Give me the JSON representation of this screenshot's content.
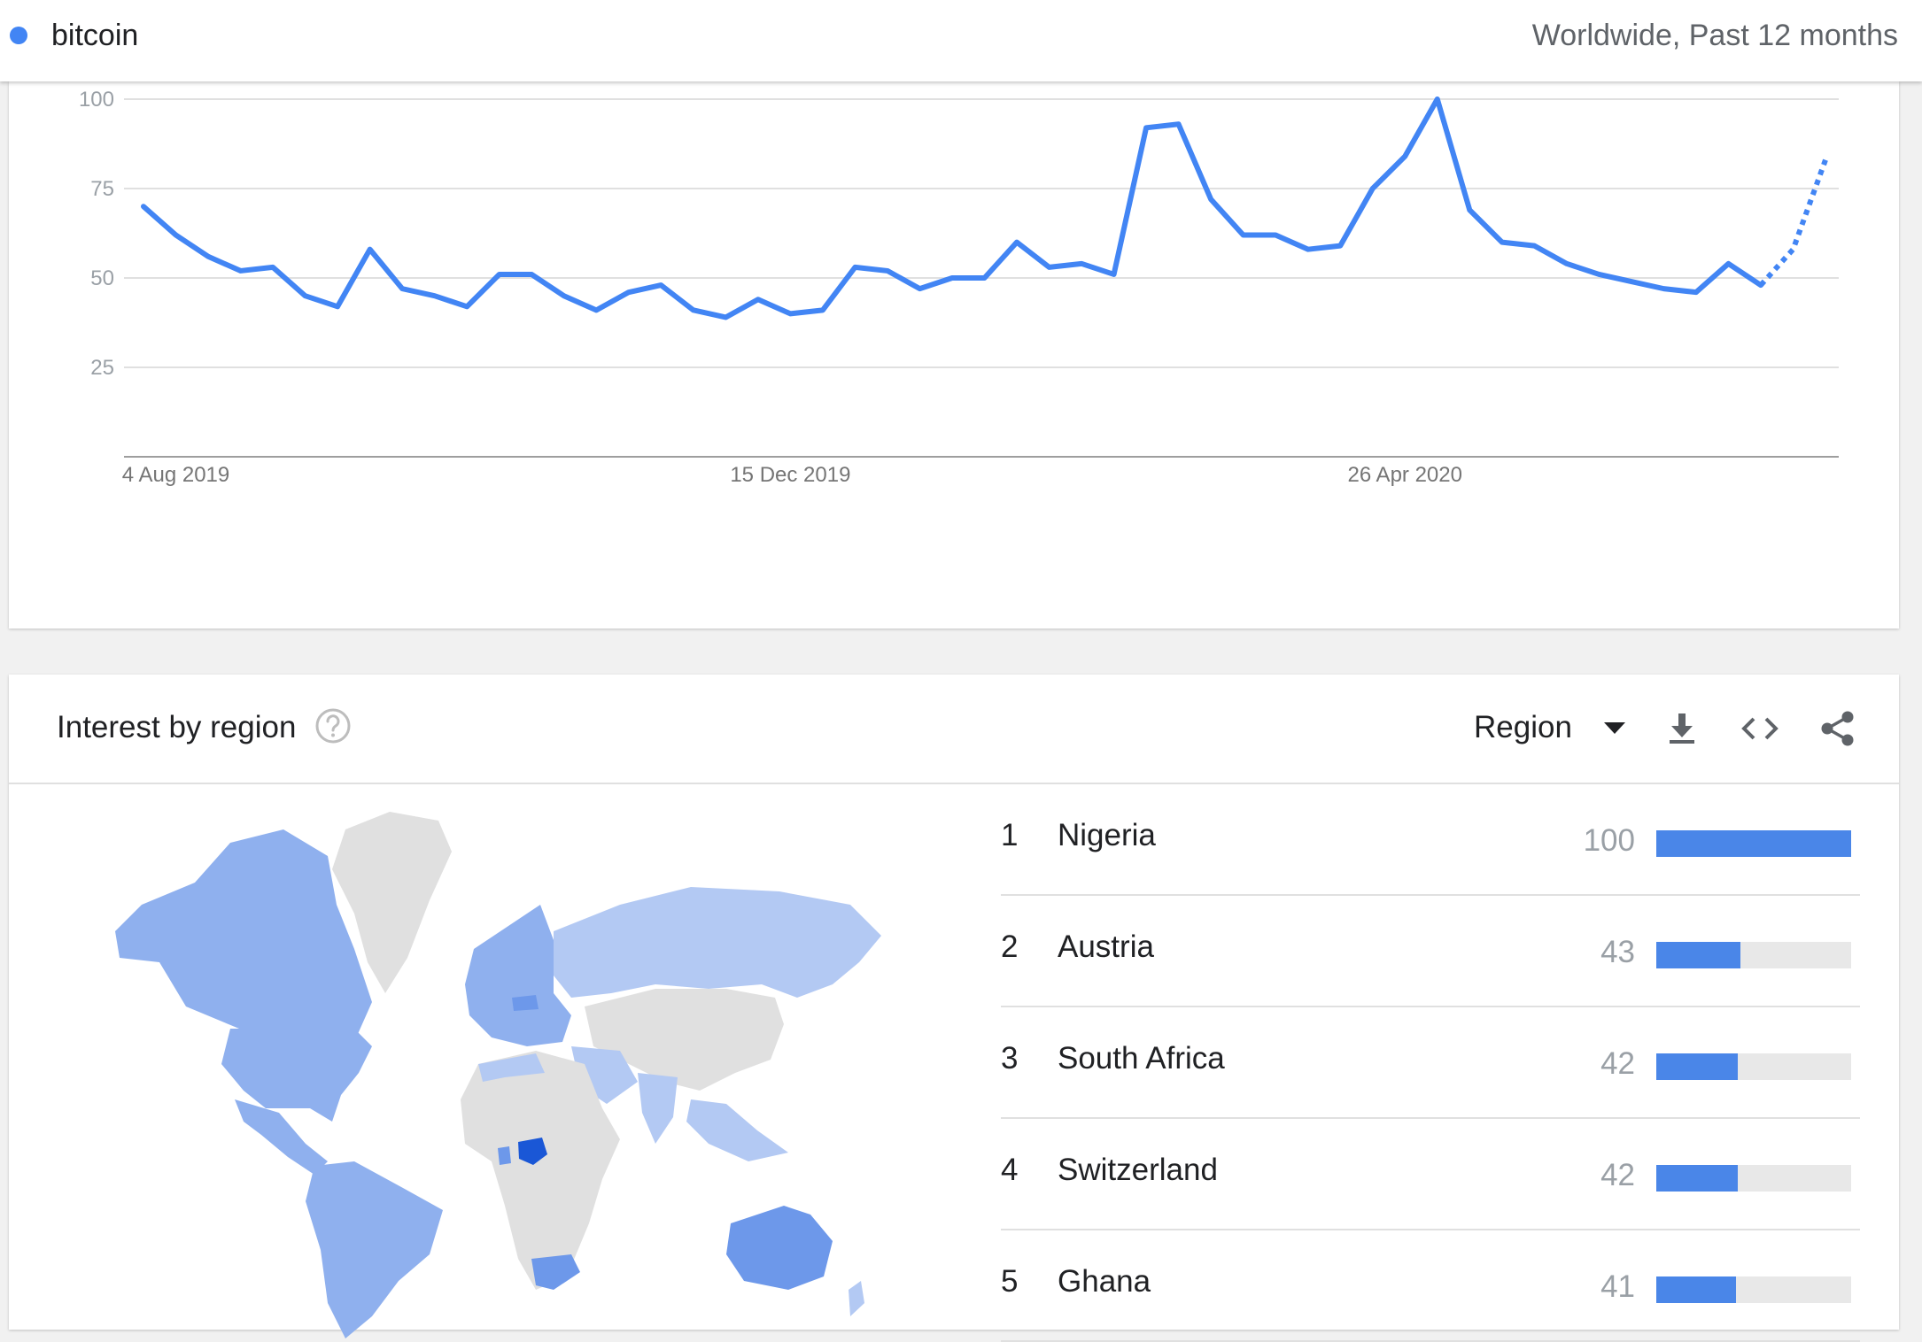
{
  "header": {
    "term": "bitcoin",
    "scope": "Worldwide, Past 12 months",
    "series_color": "#4285f4"
  },
  "chart_data": {
    "type": "line",
    "x": [
      "2019-07-28",
      "2019-08-04",
      "2019-08-11",
      "2019-08-18",
      "2019-08-25",
      "2019-09-01",
      "2019-09-08",
      "2019-09-15",
      "2019-09-22",
      "2019-09-29",
      "2019-10-06",
      "2019-10-13",
      "2019-10-20",
      "2019-10-27",
      "2019-11-03",
      "2019-11-10",
      "2019-11-17",
      "2019-11-24",
      "2019-12-01",
      "2019-12-08",
      "2019-12-15",
      "2019-12-22",
      "2019-12-29",
      "2020-01-05",
      "2020-01-12",
      "2020-01-19",
      "2020-01-26",
      "2020-02-02",
      "2020-02-09",
      "2020-02-16",
      "2020-02-23",
      "2020-03-01",
      "2020-03-08",
      "2020-03-15",
      "2020-03-22",
      "2020-03-29",
      "2020-04-05",
      "2020-04-12",
      "2020-04-19",
      "2020-04-26",
      "2020-05-03",
      "2020-05-10",
      "2020-05-17",
      "2020-05-24",
      "2020-05-31",
      "2020-06-07",
      "2020-06-14",
      "2020-06-21",
      "2020-06-28",
      "2020-07-05",
      "2020-07-12",
      "2020-07-19",
      "2020-07-26"
    ],
    "series": [
      {
        "name": "bitcoin",
        "values": [
          70,
          62,
          56,
          52,
          53,
          45,
          42,
          58,
          47,
          45,
          42,
          51,
          51,
          45,
          41,
          46,
          48,
          41,
          39,
          44,
          40,
          41,
          53,
          52,
          47,
          50,
          50,
          60,
          53,
          54,
          51,
          92,
          93,
          72,
          62,
          62,
          58,
          59,
          75,
          84,
          100,
          69,
          60,
          59,
          54,
          51,
          49,
          47,
          46,
          54,
          48,
          58,
          83
        ],
        "partial_from_index": 50
      }
    ],
    "ylim": [
      0,
      100
    ],
    "yticks": [
      25,
      50,
      75,
      100
    ],
    "xtick_labels": [
      {
        "label": "4 Aug 2019",
        "x": "2019-08-04"
      },
      {
        "label": "15 Dec 2019",
        "x": "2019-12-15"
      },
      {
        "label": "26 Apr 2020",
        "x": "2020-04-26"
      }
    ],
    "grid": true
  },
  "region": {
    "title": "Interest by region",
    "dropdown_label": "Region",
    "help_icon": "help-circle-icon",
    "tools": [
      "download-icon",
      "embed-code-icon",
      "share-icon"
    ],
    "bar_fill_color": "#4a86e8",
    "rows": [
      {
        "rank": "1",
        "name": "Nigeria",
        "value": "100",
        "fraction": 1.0
      },
      {
        "rank": "2",
        "name": "Austria",
        "value": "43",
        "fraction": 0.43
      },
      {
        "rank": "3",
        "name": "South Africa",
        "value": "42",
        "fraction": 0.42
      },
      {
        "rank": "4",
        "name": "Switzerland",
        "value": "42",
        "fraction": 0.42
      },
      {
        "rank": "5",
        "name": "Ghana",
        "value": "41",
        "fraction": 0.41
      }
    ]
  },
  "map_colors": {
    "no_data": "#e0e0e0",
    "low": "#b3c9f3",
    "mid": "#8fb0ee",
    "high": "#6d98ea",
    "max": "#1a57d6"
  }
}
